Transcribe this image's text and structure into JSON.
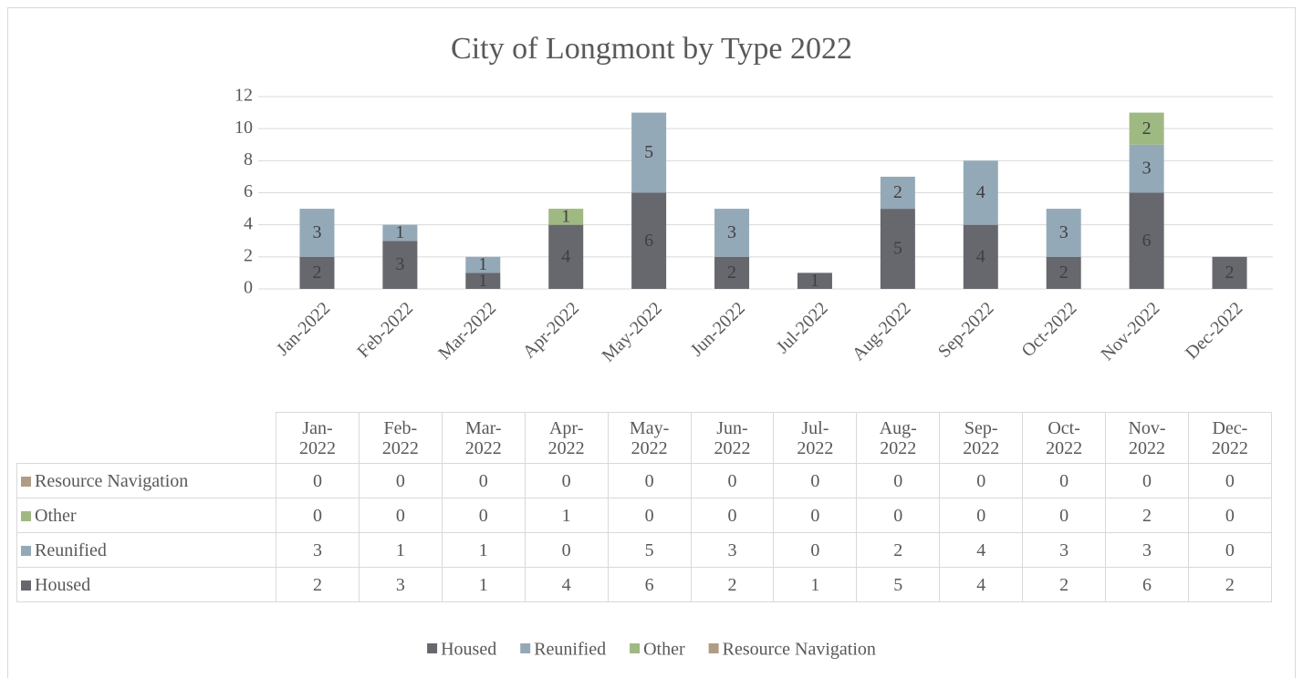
{
  "chart_data": {
    "type": "stacked_bar",
    "title": "City of Longmont by Type 2022",
    "categories": [
      "Jan-2022",
      "Feb-2022",
      "Mar-2022",
      "Apr-2022",
      "May-2022",
      "Jun-2022",
      "Jul-2022",
      "Aug-2022",
      "Sep-2022",
      "Oct-2022",
      "Nov-2022",
      "Dec-2022"
    ],
    "series": [
      {
        "name": "Housed",
        "color": "#67676e",
        "values": [
          2,
          3,
          1,
          4,
          6,
          2,
          1,
          5,
          4,
          2,
          6,
          2
        ]
      },
      {
        "name": "Reunified",
        "color": "#94a9b8",
        "values": [
          3,
          1,
          1,
          0,
          5,
          3,
          0,
          2,
          4,
          3,
          3,
          0
        ]
      },
      {
        "name": "Other",
        "color": "#9fb982",
        "values": [
          0,
          0,
          0,
          1,
          0,
          0,
          0,
          0,
          0,
          0,
          2,
          0
        ]
      },
      {
        "name": "Resource Navigation",
        "color": "#b09c85",
        "values": [
          0,
          0,
          0,
          0,
          0,
          0,
          0,
          0,
          0,
          0,
          0,
          0
        ]
      }
    ],
    "ylim": [
      0,
      12
    ],
    "yticks": [
      0,
      2,
      4,
      6,
      8,
      10,
      12
    ],
    "grid": true,
    "legend": "bottom",
    "data_table": true
  }
}
